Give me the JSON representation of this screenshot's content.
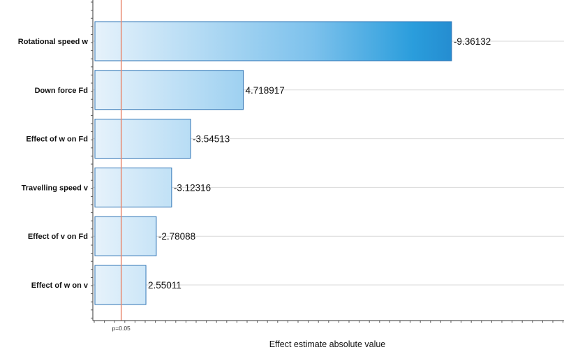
{
  "chart_data": {
    "type": "bar",
    "orientation": "horizontal",
    "categories": [
      "Rotational speed w",
      "Down force Fd",
      "Effect of w on Fd",
      "Travelling speed v",
      "Effect of v on Fd",
      "Effect of w on v"
    ],
    "values": [
      9.36132,
      4.718917,
      3.54513,
      3.12316,
      2.78088,
      2.55011
    ],
    "value_labels": [
      "-9.36132",
      "4.718917",
      "-3.54513",
      "-3.12316",
      "-2.78088",
      "2.55011"
    ],
    "reference_line": {
      "value": 2.0,
      "label": "p=0.05",
      "color": "#e8896f"
    },
    "xlabel": "Effect estimate absolute value",
    "ylabel": "",
    "xlim": [
      1.414,
      10.28
    ],
    "grid": "horizontal",
    "bar_gradient": [
      "#e6f2fb",
      "#1f7cc4"
    ],
    "bar_border": "#2f74b5"
  }
}
